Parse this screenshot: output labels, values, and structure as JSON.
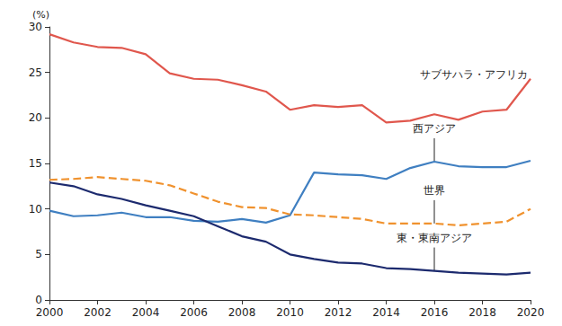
{
  "chart_data": {
    "type": "line",
    "ylabel": "(%)",
    "xlim": [
      2000,
      2020
    ],
    "xticks": [
      2000,
      2002,
      2004,
      2006,
      2008,
      2010,
      2012,
      2014,
      2016,
      2018,
      2020
    ],
    "ylim": [
      0,
      30
    ],
    "yticks": [
      0,
      5,
      10,
      15,
      20,
      25,
      30
    ],
    "grid": false,
    "x": [
      2000,
      2001,
      2002,
      2003,
      2004,
      2005,
      2006,
      2007,
      2008,
      2009,
      2010,
      2011,
      2012,
      2013,
      2014,
      2015,
      2016,
      2017,
      2018,
      2019,
      2020
    ],
    "series": [
      {
        "name": "サブサハラ・アフリカ",
        "color": "#e0574d",
        "line_style": "solid",
        "values": [
          29.2,
          28.3,
          27.8,
          27.7,
          27.0,
          24.9,
          24.3,
          24.2,
          23.6,
          22.9,
          20.9,
          21.4,
          21.2,
          21.4,
          19.5,
          19.7,
          20.4,
          19.8,
          20.7,
          20.9,
          24.3
        ]
      },
      {
        "name": "西アジア",
        "color": "#3f7fc1",
        "line_style": "solid",
        "values": [
          9.8,
          9.2,
          9.3,
          9.6,
          9.1,
          9.1,
          8.7,
          8.6,
          8.9,
          8.5,
          9.3,
          14.0,
          13.8,
          13.7,
          13.3,
          14.5,
          15.2,
          14.7,
          14.6,
          14.6,
          15.3
        ]
      },
      {
        "name": "世界",
        "color": "#f0922e",
        "line_style": "dashed",
        "values": [
          13.2,
          13.3,
          13.5,
          13.3,
          13.1,
          12.6,
          11.7,
          10.8,
          10.2,
          10.1,
          9.4,
          9.3,
          9.1,
          8.9,
          8.4,
          8.4,
          8.4,
          8.2,
          8.4,
          8.6,
          10.0
        ]
      },
      {
        "name": "東・東南アジア",
        "color": "#1c2a6e",
        "line_style": "solid",
        "values": [
          12.9,
          12.5,
          11.6,
          11.1,
          10.4,
          9.8,
          9.2,
          8.1,
          7.0,
          6.4,
          5.0,
          4.5,
          4.1,
          4.0,
          3.5,
          3.4,
          3.2,
          3.0,
          2.9,
          2.8,
          3.0
        ]
      }
    ]
  }
}
